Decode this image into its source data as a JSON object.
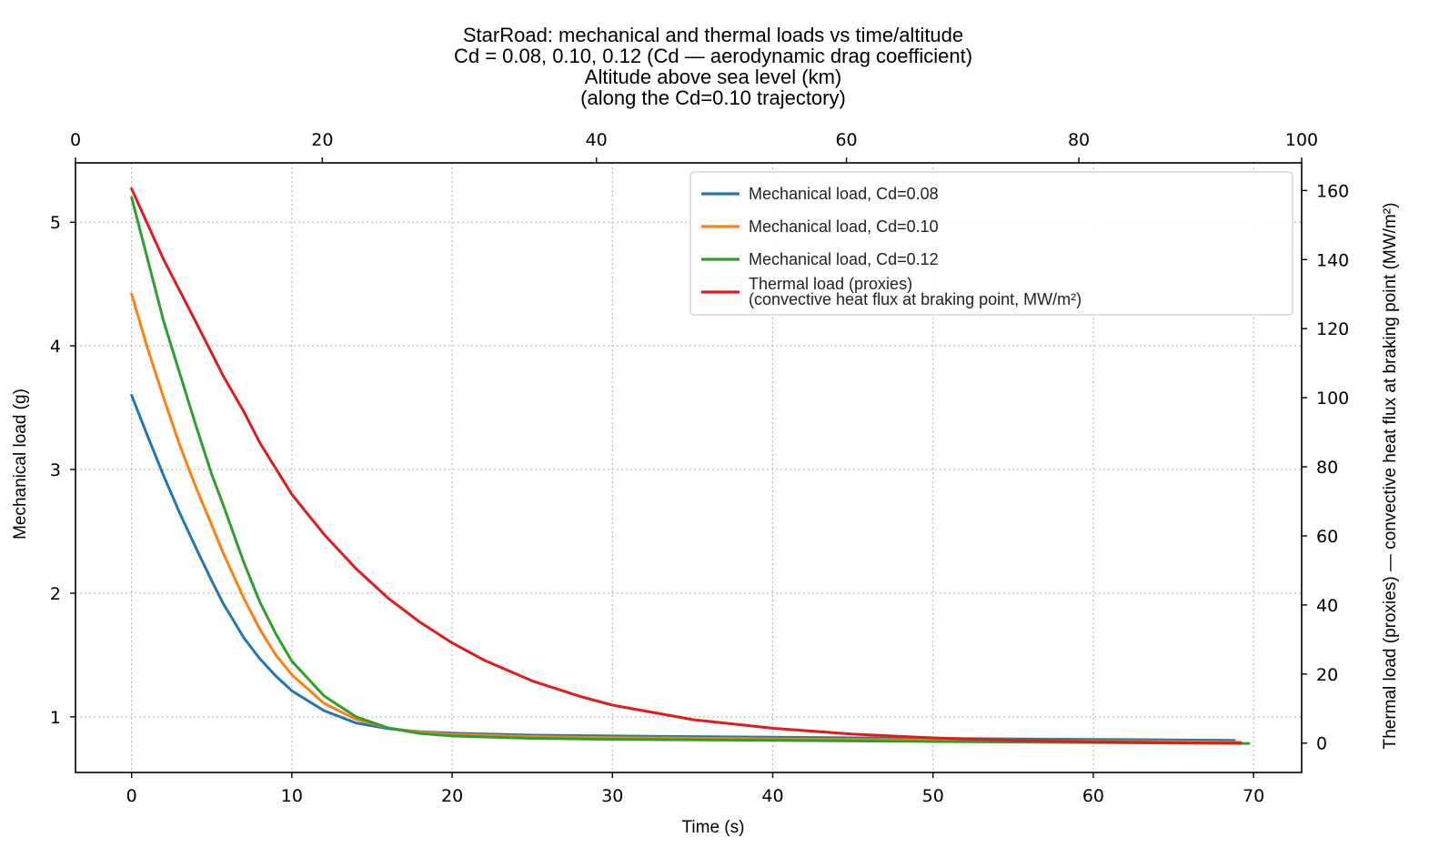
{
  "chart_data": {
    "type": "line",
    "title_lines": [
      "StarRoad: mechanical and thermal loads vs time/altitude",
      "Cd = 0.08, 0.10, 0.12 (Cd — aerodynamic drag coefficient)",
      "Altitude above sea level (km)",
      "(along the Cd=0.10 trajectory)"
    ],
    "xlabel": "Time (s)",
    "ylabel_left": "Mechanical load (g)",
    "ylabel_right": "Thermal load (proxies) — convective heat flux at braking point (MW/m²)",
    "xlim": [
      -3.5,
      73
    ],
    "ylim_left": [
      0.55,
      5.48
    ],
    "ylim_right": [
      -8.5,
      168
    ],
    "x_ticks": [
      "0",
      "10",
      "20",
      "30",
      "40",
      "50",
      "60",
      "70"
    ],
    "y_left_ticks": [
      "1",
      "2",
      "3",
      "4",
      "5"
    ],
    "y_right_ticks": [
      "0",
      "20",
      "40",
      "60",
      "80",
      "100",
      "120",
      "140",
      "160"
    ],
    "top_axis_ticks": [
      {
        "label": "0",
        "time": -3.5
      },
      {
        "label": "20",
        "time": 11.9
      },
      {
        "label": "40",
        "time": 29.0
      },
      {
        "label": "60",
        "time": 44.6
      },
      {
        "label": "80",
        "time": 59.1
      },
      {
        "label": "100",
        "time": 73.0
      }
    ],
    "grid": true,
    "legend_position": "top-right",
    "series": [
      {
        "name": "Mechanical load, Cd=0.08",
        "color": "#1f77b4",
        "axis": "left",
        "points": [
          [
            0,
            3.6
          ],
          [
            1,
            3.27
          ],
          [
            2,
            2.95
          ],
          [
            3,
            2.65
          ],
          [
            4,
            2.37
          ],
          [
            5,
            2.1
          ],
          [
            5.7,
            1.92
          ],
          [
            7,
            1.64
          ],
          [
            8,
            1.47
          ],
          [
            9,
            1.33
          ],
          [
            10,
            1.21
          ],
          [
            12,
            1.05
          ],
          [
            14,
            0.95
          ],
          [
            16,
            0.905
          ],
          [
            18,
            0.88
          ],
          [
            20,
            0.868
          ],
          [
            25,
            0.852
          ],
          [
            30,
            0.845
          ],
          [
            40,
            0.835
          ],
          [
            50,
            0.825
          ],
          [
            60,
            0.817
          ],
          [
            68.8,
            0.81
          ]
        ]
      },
      {
        "name": "Mechanical load, Cd=0.10",
        "color": "#ff7f0e",
        "axis": "left",
        "points": [
          [
            0,
            4.42
          ],
          [
            1,
            3.98
          ],
          [
            2,
            3.58
          ],
          [
            3,
            3.2
          ],
          [
            4,
            2.86
          ],
          [
            5,
            2.55
          ],
          [
            5.7,
            2.33
          ],
          [
            7,
            1.96
          ],
          [
            8,
            1.71
          ],
          [
            9,
            1.5
          ],
          [
            10,
            1.34
          ],
          [
            12,
            1.11
          ],
          [
            14,
            0.98
          ],
          [
            16,
            0.91
          ],
          [
            18,
            0.875
          ],
          [
            20,
            0.858
          ],
          [
            25,
            0.84
          ],
          [
            30,
            0.832
          ],
          [
            40,
            0.822
          ],
          [
            50,
            0.812
          ],
          [
            60,
            0.803
          ],
          [
            69.2,
            0.795
          ]
        ]
      },
      {
        "name": "Mechanical load, Cd=0.12",
        "color": "#2ca02c",
        "axis": "left",
        "points": [
          [
            0,
            5.2
          ],
          [
            1,
            4.7
          ],
          [
            2,
            4.2
          ],
          [
            3,
            3.78
          ],
          [
            4,
            3.36
          ],
          [
            5,
            2.96
          ],
          [
            5.7,
            2.72
          ],
          [
            7,
            2.25
          ],
          [
            8,
            1.93
          ],
          [
            9,
            1.67
          ],
          [
            10,
            1.45
          ],
          [
            12,
            1.17
          ],
          [
            14,
            1.0
          ],
          [
            16,
            0.91
          ],
          [
            18,
            0.866
          ],
          [
            20,
            0.845
          ],
          [
            25,
            0.826
          ],
          [
            30,
            0.818
          ],
          [
            40,
            0.81
          ],
          [
            50,
            0.8
          ],
          [
            60,
            0.792
          ],
          [
            69.7,
            0.785
          ]
        ]
      },
      {
        "name": "Thermal load (proxies)\n(convective heat flux at braking point, MW/m²)",
        "legend_lines": [
          "Thermal load (proxies)",
          "(convective heat flux at braking point, MW/m²)"
        ],
        "color": "#e31a1c",
        "axis": "right",
        "points": [
          [
            0,
            160.5
          ],
          [
            2,
            140
          ],
          [
            4,
            122
          ],
          [
            5.7,
            106.5
          ],
          [
            7,
            96
          ],
          [
            8,
            87
          ],
          [
            10,
            72
          ],
          [
            12,
            60.5
          ],
          [
            14,
            50.5
          ],
          [
            16,
            42
          ],
          [
            18,
            35
          ],
          [
            20,
            29
          ],
          [
            22,
            24
          ],
          [
            25,
            18
          ],
          [
            28,
            13.5
          ],
          [
            30,
            11
          ],
          [
            35,
            6.8
          ],
          [
            40,
            4.3
          ],
          [
            45,
            2.6
          ],
          [
            50,
            1.5
          ],
          [
            55,
            0.8
          ],
          [
            60,
            0.4
          ],
          [
            65,
            0.1
          ],
          [
            69.2,
            0
          ]
        ]
      }
    ]
  }
}
